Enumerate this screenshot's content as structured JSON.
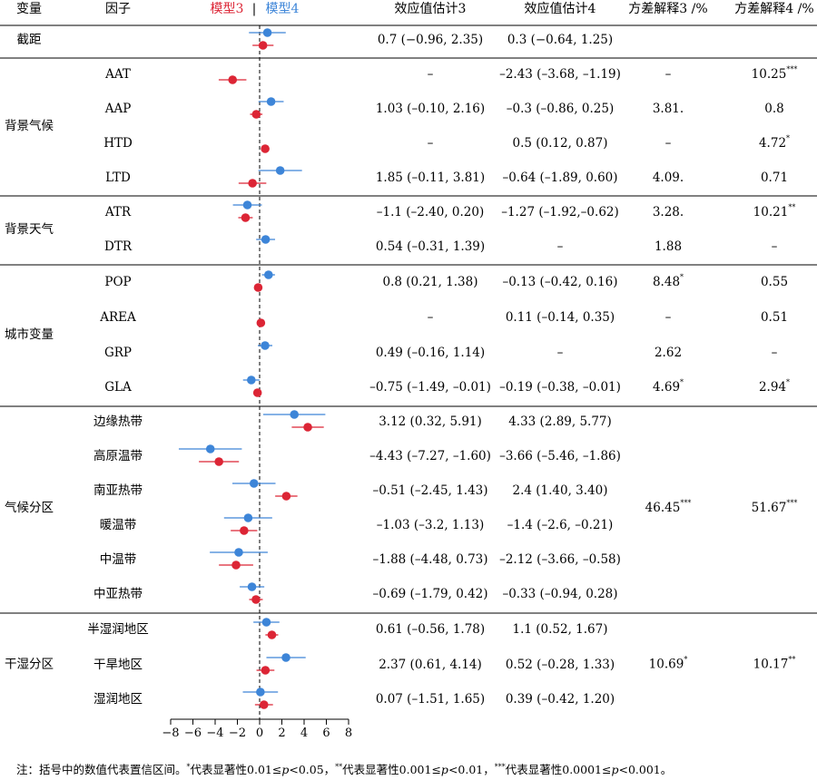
{
  "header": {
    "variable": "变量",
    "factor": "因子",
    "model3_label": "模型3",
    "separator": "|",
    "model4_label": "模型4",
    "est3": "效应值估计3",
    "est4": "效应值估计4",
    "var3": "方差解释3 /%",
    "var4": "方差解释4 /%"
  },
  "colors": {
    "model3": "#dc2535",
    "model4": "#3d85d8"
  },
  "groups": [
    {
      "name": "",
      "rows": [
        {
          "factor": "截距",
          "est3": "0.7 (−0.96, 2.35)",
          "est4": "0.3 (−0.64, 1.25)",
          "var3": "",
          "var3_sig": "",
          "var4": "",
          "var4_sig": ""
        }
      ]
    },
    {
      "name": "背景气候",
      "rows": [
        {
          "factor": "AAT",
          "est3": "–",
          "est4": "–2.43 (–3.68, –1.19)",
          "var3": "–",
          "var3_sig": "",
          "var4": "10.25",
          "var4_sig": "***"
        },
        {
          "factor": "AAP",
          "est3": "1.03 (–0.10, 2.16)",
          "est4": "–0.3 (–0.86, 0.25)",
          "var3": "3.81.",
          "var3_sig": "",
          "var4": "0.8",
          "var4_sig": ""
        },
        {
          "factor": "HTD",
          "est3": "–",
          "est4": "0.5 (0.12, 0.87)",
          "var3": "–",
          "var3_sig": "",
          "var4": "4.72",
          "var4_sig": "*"
        },
        {
          "factor": "LTD",
          "est3": "1.85 (–0.11, 3.81)",
          "est4": "–0.64 (–1.89, 0.60)",
          "var3": "4.09.",
          "var3_sig": "",
          "var4": "0.71",
          "var4_sig": ""
        }
      ]
    },
    {
      "name": "背景天气",
      "rows": [
        {
          "factor": "ATR",
          "est3": "–1.1 (–2.40, 0.20)",
          "est4": "–1.27 (–1.92,–0.62)",
          "var3": "3.28.",
          "var3_sig": "",
          "var4": "10.21",
          "var4_sig": "**"
        },
        {
          "factor": "DTR",
          "est3": "0.54 (–0.31, 1.39)",
          "est4": "–",
          "var3": "1.88",
          "var3_sig": "",
          "var4": "–",
          "var4_sig": ""
        }
      ]
    },
    {
      "name": "城市变量",
      "rows": [
        {
          "factor": "POP",
          "est3": "0.8 (0.21, 1.38)",
          "est4": "–0.13 (–0.42, 0.16)",
          "var3": "8.48",
          "var3_sig": "*",
          "var4": "0.55",
          "var4_sig": ""
        },
        {
          "factor": "AREA",
          "est3": "–",
          "est4": "0.11 (–0.14, 0.35)",
          "var3": "–",
          "var3_sig": "",
          "var4": "0.51",
          "var4_sig": ""
        },
        {
          "factor": "GRP",
          "est3": "0.49 (–0.16, 1.14)",
          "est4": "–",
          "var3": "2.62",
          "var3_sig": "",
          "var4": "–",
          "var4_sig": ""
        },
        {
          "factor": "GLA",
          "est3": "–0.75 (–1.49, –0.01)",
          "est4": "–0.19 (–0.38, –0.01)",
          "var3": "4.69",
          "var3_sig": "*",
          "var4": "2.94",
          "var4_sig": "*"
        }
      ]
    },
    {
      "name": "气候分区",
      "var3": "46.45",
      "var3_sig": "***",
      "var4": "51.67",
      "var4_sig": "***",
      "rows": [
        {
          "factor": "边缘热带",
          "est3": "3.12 (0.32, 5.91)",
          "est4": "4.33 (2.89, 5.77)"
        },
        {
          "factor": "高原温带",
          "est3": "–4.43 (–7.27, –1.60)",
          "est4": "–3.66 (–5.46, –1.86)"
        },
        {
          "factor": "南亚热带",
          "est3": "–0.51 (–2.45, 1.43)",
          "est4": "2.4 (1.40, 3.40)"
        },
        {
          "factor": "暖温带",
          "est3": "–1.03 (–3.2, 1.13)",
          "est4": "–1.4 (–2.6, –0.21)"
        },
        {
          "factor": "中温带",
          "est3": "–1.88 (–4.48, 0.73)",
          "est4": "–2.12 (–3.66, –0.58)"
        },
        {
          "factor": "中亚热带",
          "est3": "–0.69 (–1.79, 0.42)",
          "est4": "–0.33 (–0.94, 0.28)"
        }
      ]
    },
    {
      "name": "干湿分区",
      "var3": "10.69",
      "var3_sig": "*",
      "var4": "10.17",
      "var4_sig": "**",
      "rows": [
        {
          "factor": "半湿润地区",
          "est3": "0.61 (–0.56, 1.78)",
          "est4": "1.1 (0.52, 1.67)"
        },
        {
          "factor": "干旱地区",
          "est3": "2.37 (0.61, 4.14)",
          "est4": "0.52 (–0.28, 1.33)"
        },
        {
          "factor": "湿润地区",
          "est3": "0.07 (–1.51, 1.65)",
          "est4": "0.39 (–0.42, 1.20)"
        }
      ]
    }
  ],
  "chart_data": {
    "type": "forest",
    "xlim": [
      -8,
      8
    ],
    "xticks": [
      -8,
      -6,
      -4,
      -2,
      0,
      2,
      4,
      6,
      8
    ],
    "reference_line": 0,
    "series": [
      {
        "name": "模型4",
        "color": "#3d85d8"
      },
      {
        "name": "模型3",
        "color": "#dc2535"
      }
    ],
    "points": [
      {
        "factor": "截距",
        "m4": [
          0.7,
          -0.96,
          2.35
        ],
        "m3": [
          0.3,
          -0.64,
          1.25
        ]
      },
      {
        "factor": "AAT",
        "m4": null,
        "m3": [
          -2.43,
          -3.68,
          -1.19
        ]
      },
      {
        "factor": "AAP",
        "m4": [
          1.03,
          -0.1,
          2.16
        ],
        "m3": [
          -0.3,
          -0.86,
          0.25
        ]
      },
      {
        "factor": "HTD",
        "m4": null,
        "m3": [
          0.5,
          0.12,
          0.87
        ]
      },
      {
        "factor": "LTD",
        "m4": [
          1.85,
          -0.11,
          3.81
        ],
        "m3": [
          -0.64,
          -1.89,
          0.6
        ]
      },
      {
        "factor": "ATR",
        "m4": [
          -1.1,
          -2.4,
          0.2
        ],
        "m3": [
          -1.27,
          -1.92,
          -0.62
        ]
      },
      {
        "factor": "DTR",
        "m4": [
          0.54,
          -0.31,
          1.39
        ],
        "m3": null
      },
      {
        "factor": "POP",
        "m4": [
          0.8,
          0.21,
          1.38
        ],
        "m3": [
          -0.13,
          -0.42,
          0.16
        ]
      },
      {
        "factor": "AREA",
        "m4": null,
        "m3": [
          0.11,
          -0.14,
          0.35
        ]
      },
      {
        "factor": "GRP",
        "m4": [
          0.49,
          -0.16,
          1.14
        ],
        "m3": null
      },
      {
        "factor": "GLA",
        "m4": [
          -0.75,
          -1.49,
          -0.01
        ],
        "m3": [
          -0.19,
          -0.38,
          -0.01
        ]
      },
      {
        "factor": "边缘热带",
        "m4": [
          3.12,
          0.32,
          5.91
        ],
        "m3": [
          4.33,
          2.89,
          5.77
        ]
      },
      {
        "factor": "高原温带",
        "m4": [
          -4.43,
          -7.27,
          -1.6
        ],
        "m3": [
          -3.66,
          -5.46,
          -1.86
        ]
      },
      {
        "factor": "南亚热带",
        "m4": [
          -0.51,
          -2.45,
          1.43
        ],
        "m3": [
          2.4,
          1.4,
          3.4
        ]
      },
      {
        "factor": "暖温带",
        "m4": [
          -1.03,
          -3.2,
          1.13
        ],
        "m3": [
          -1.4,
          -2.6,
          -0.21
        ]
      },
      {
        "factor": "中温带",
        "m4": [
          -1.88,
          -4.48,
          0.73
        ],
        "m3": [
          -2.12,
          -3.66,
          -0.58
        ]
      },
      {
        "factor": "中亚热带",
        "m4": [
          -0.69,
          -1.79,
          0.42
        ],
        "m3": [
          -0.33,
          -0.94,
          0.28
        ]
      },
      {
        "factor": "半湿润地区",
        "m4": [
          0.61,
          -0.56,
          1.78
        ],
        "m3": [
          1.1,
          0.52,
          1.67
        ]
      },
      {
        "factor": "干旱地区",
        "m4": [
          2.37,
          0.61,
          4.14
        ],
        "m3": [
          0.52,
          -0.28,
          1.33
        ]
      },
      {
        "factor": "湿润地区",
        "m4": [
          0.07,
          -1.51,
          1.65
        ],
        "m3": [
          0.39,
          -0.42,
          1.2
        ]
      }
    ]
  },
  "footnote": {
    "lead": "注：括号中的数值代表置信区间。",
    "sig1_mark": "*",
    "sig1_text": "代表显著性0.01≤",
    "sig1_end": "<0.05，",
    "sig2_mark": "**",
    "sig2_text": "代表显著性0.001≤",
    "sig2_end": "<0.01，",
    "sig3_mark": "***",
    "sig3_text": "代表显著性0.0001≤",
    "sig3_end": "<0.001。",
    "p": "p"
  }
}
